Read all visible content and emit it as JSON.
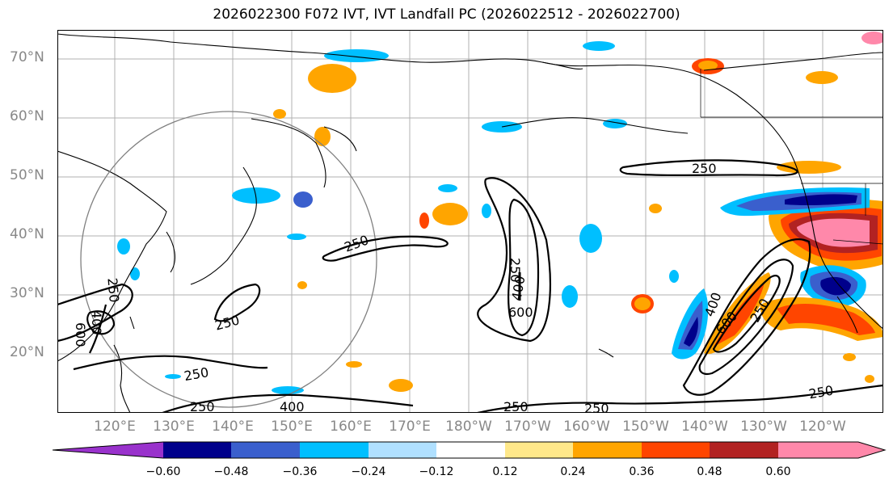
{
  "title": "2026022300 F072 IVT, IVT Landfall PC (2026022512 - 2026022700)",
  "lat_labels": [
    "70°N",
    "60°N",
    "50°N",
    "40°N",
    "30°N",
    "20°N"
  ],
  "lon_labels": [
    "120°E",
    "130°E",
    "140°E",
    "150°E",
    "160°E",
    "170°E",
    "180°W",
    "170°W",
    "160°W",
    "150°W",
    "140°W",
    "130°W",
    "120°W"
  ],
  "contour_labels": [
    "250",
    "250",
    "250",
    "250",
    "250",
    "250",
    "250",
    "250",
    "250",
    "250",
    "400",
    "400",
    "400",
    "400",
    "600",
    "600",
    "600",
    "250"
  ],
  "colorbar": {
    "ticks": [
      "−0.60",
      "−0.48",
      "−0.36",
      "−0.24",
      "−0.12",
      "0.12",
      "0.24",
      "0.36",
      "0.48",
      "0.60"
    ],
    "colors": [
      "#9932cc",
      "#00008b",
      "#3a5fcd",
      "#00bfff",
      "#b0e0ff",
      "#ffffff",
      "#ffe88a",
      "#ffa500",
      "#ff4500",
      "#b22222",
      "#ff88aa",
      "#ff88aa"
    ]
  }
}
